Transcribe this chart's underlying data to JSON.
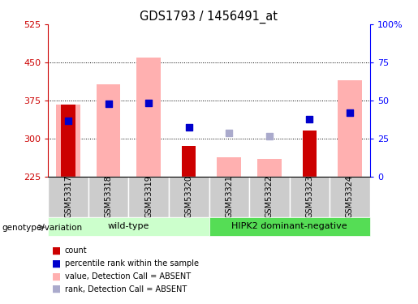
{
  "title": "GDS1793 / 1456491_at",
  "samples": [
    "GSM53317",
    "GSM53318",
    "GSM53319",
    "GSM53320",
    "GSM53321",
    "GSM53322",
    "GSM53323",
    "GSM53324"
  ],
  "ylim_left": [
    225,
    525
  ],
  "ylim_right": [
    0,
    100
  ],
  "yticks_left": [
    225,
    300,
    375,
    450,
    525
  ],
  "yticks_right": [
    0,
    25,
    50,
    75,
    100
  ],
  "ytick_labels_right": [
    "0",
    "25",
    "50",
    "75",
    "100%"
  ],
  "baseline": 225,
  "red_bars": [
    367,
    null,
    null,
    285,
    null,
    null,
    315,
    null
  ],
  "pink_bars": [
    367,
    407,
    460,
    null,
    262,
    260,
    null,
    415
  ],
  "blue_squares": [
    335,
    368,
    370,
    322,
    null,
    null,
    338,
    350
  ],
  "lightblue_squares": [
    null,
    null,
    null,
    null,
    310,
    305,
    null,
    null
  ],
  "wild_type_label": "wild-type",
  "hipk2_label": "HIPK2 dominant-negative",
  "genotype_label": "genotype/variation",
  "red_color": "#cc0000",
  "pink_color": "#ffb0b0",
  "blue_color": "#0000cc",
  "lightblue_color": "#aaaacc",
  "wild_type_bg": "#ccffcc",
  "hipk2_bg": "#55dd55",
  "sample_bg": "#cccccc",
  "bar_width": 0.35,
  "pink_bar_width": 0.6,
  "square_size": 40,
  "grid_lines": [
    300,
    375,
    450
  ],
  "legend_labels": [
    "count",
    "percentile rank within the sample",
    "value, Detection Call = ABSENT",
    "rank, Detection Call = ABSENT"
  ]
}
